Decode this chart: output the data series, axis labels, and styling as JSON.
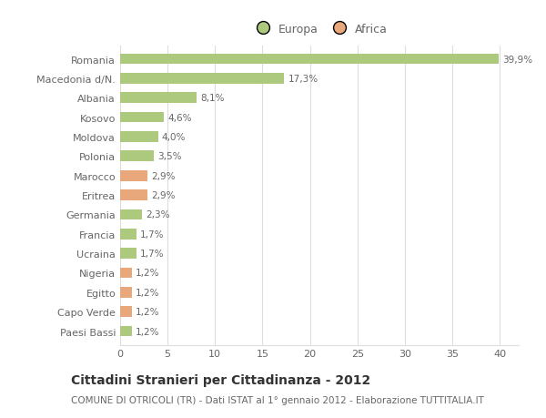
{
  "categories": [
    "Romania",
    "Macedonia d/N.",
    "Albania",
    "Kosovo",
    "Moldova",
    "Polonia",
    "Marocco",
    "Eritrea",
    "Germania",
    "Francia",
    "Ucraina",
    "Nigeria",
    "Egitto",
    "Capo Verde",
    "Paesi Bassi"
  ],
  "values": [
    39.9,
    17.3,
    8.1,
    4.6,
    4.0,
    3.5,
    2.9,
    2.9,
    2.3,
    1.7,
    1.7,
    1.2,
    1.2,
    1.2,
    1.2
  ],
  "labels": [
    "39,9%",
    "17,3%",
    "8,1%",
    "4,6%",
    "4,0%",
    "3,5%",
    "2,9%",
    "2,9%",
    "2,3%",
    "1,7%",
    "1,7%",
    "1,2%",
    "1,2%",
    "1,2%",
    "1,2%"
  ],
  "colors": [
    "#adc97e",
    "#adc97e",
    "#adc97e",
    "#adc97e",
    "#adc97e",
    "#adc97e",
    "#e8a87c",
    "#e8a87c",
    "#adc97e",
    "#adc97e",
    "#adc97e",
    "#e8a87c",
    "#e8a87c",
    "#e8a87c",
    "#adc97e"
  ],
  "legend_europa_color": "#adc97e",
  "legend_africa_color": "#e8a87c",
  "xlim": [
    0,
    42
  ],
  "xticks": [
    0,
    5,
    10,
    15,
    20,
    25,
    30,
    35,
    40
  ],
  "title": "Cittadini Stranieri per Cittadinanza - 2012",
  "subtitle": "COMUNE DI OTRICOLI (TR) - Dati ISTAT al 1° gennaio 2012 - Elaborazione TUTTITALIA.IT",
  "bg_color": "#ffffff",
  "grid_color": "#dddddd",
  "bar_height": 0.55,
  "title_fontsize": 10,
  "subtitle_fontsize": 7.5,
  "label_fontsize": 7.5,
  "tick_fontsize": 8,
  "ytick_fontsize": 8
}
